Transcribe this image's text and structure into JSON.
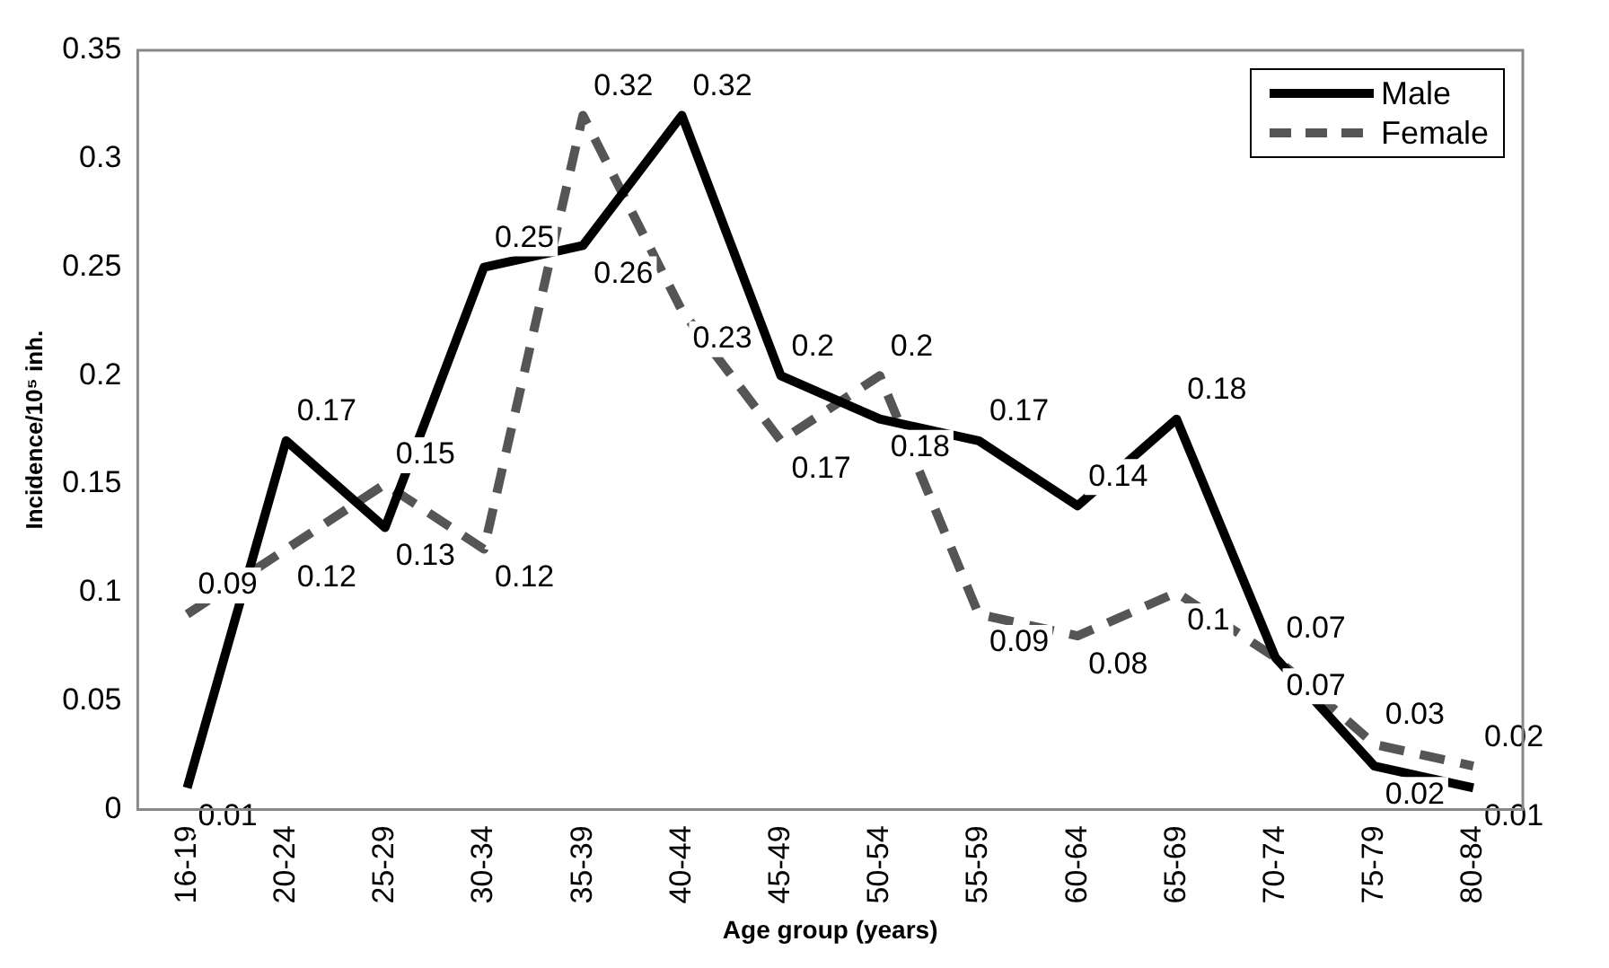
{
  "chart_data": {
    "type": "line",
    "xlabel": "Age group (years)",
    "ylabel": "Incidence/10⁵ inh.",
    "categories": [
      "16-19",
      "20-24",
      "25-29",
      "30-34",
      "35-39",
      "40-44",
      "45-49",
      "50-54",
      "55-59",
      "60-64",
      "65-69",
      "70-74",
      "75-79",
      "80-84"
    ],
    "series": [
      {
        "name": "Male",
        "color": "#000000",
        "line_style": "solid",
        "values": [
          0.01,
          0.17,
          0.13,
          0.25,
          0.26,
          0.32,
          0.2,
          0.18,
          0.17,
          0.14,
          0.18,
          0.07,
          0.02,
          0.01
        ]
      },
      {
        "name": "Female",
        "color": "#555555",
        "line_style": "dashed",
        "values": [
          0.09,
          0.12,
          0.15,
          0.12,
          0.32,
          0.23,
          0.17,
          0.2,
          0.09,
          0.08,
          0.1,
          0.07,
          0.03,
          0.02
        ]
      }
    ],
    "ylim": [
      0,
      0.35
    ],
    "yticks": [
      0,
      0.05,
      0.1,
      0.15,
      0.2,
      0.25,
      0.3,
      0.35
    ],
    "grid": false,
    "legend": "top right",
    "marker": "none",
    "data_labels": true
  }
}
